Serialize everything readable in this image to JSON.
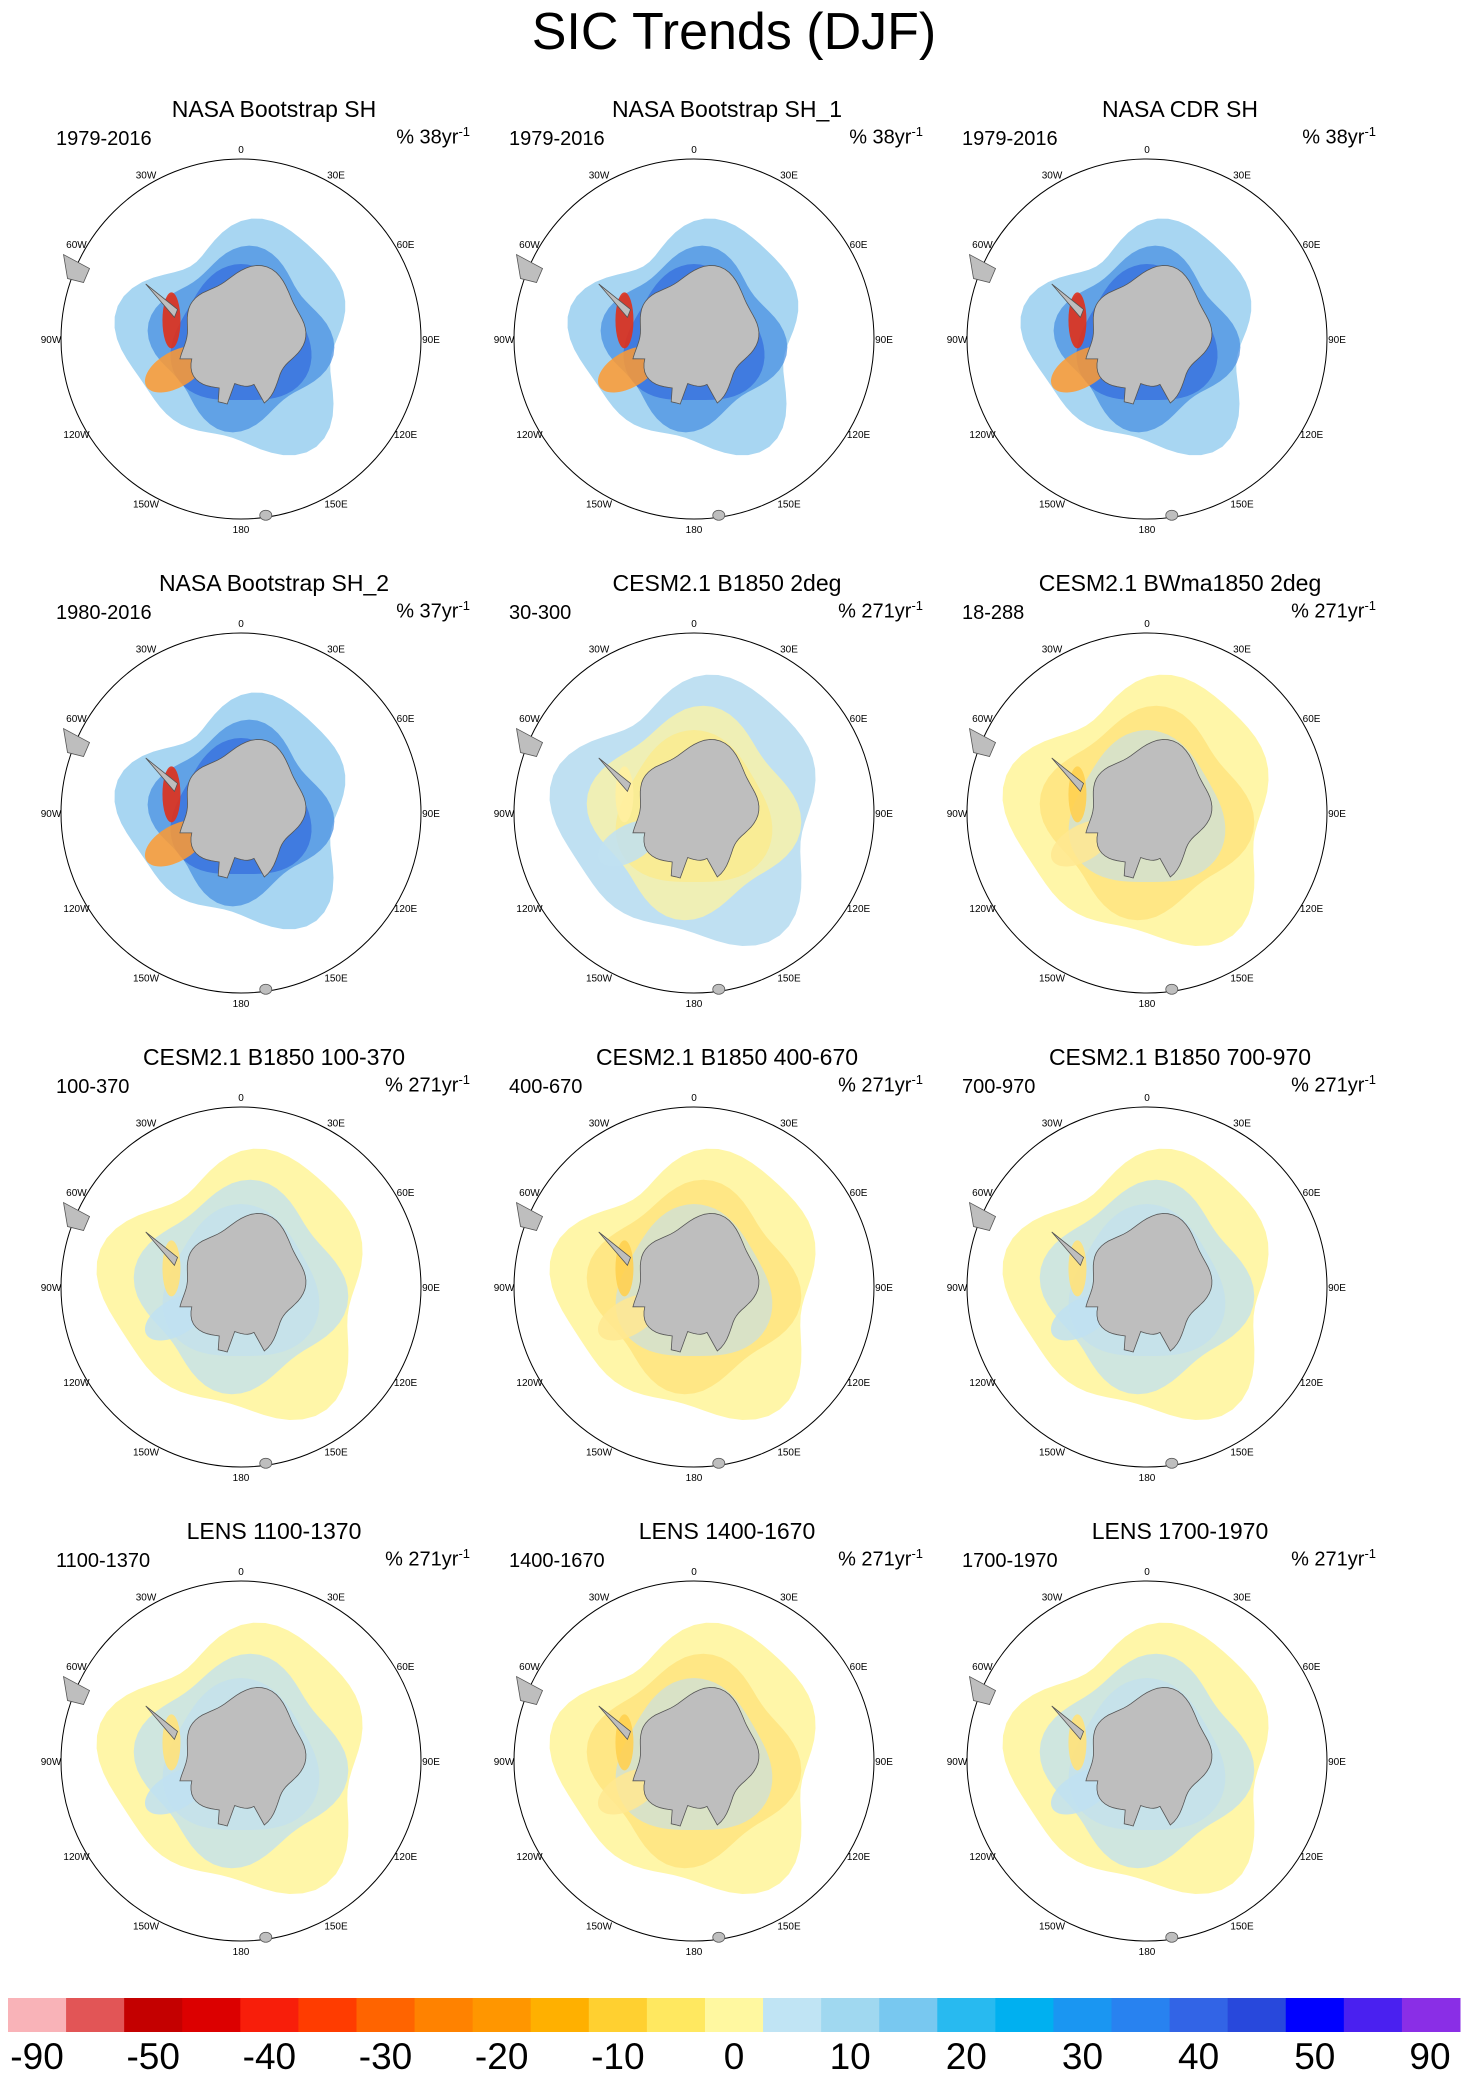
{
  "figure_title": "SIC Trends (DJF)",
  "units_prefix": "% ",
  "panels": [
    {
      "title": "NASA Bootstrap SH",
      "period": "1979-2016",
      "units_base": "38yr",
      "units_exp": "-1",
      "style": "obs"
    },
    {
      "title": "NASA Bootstrap SH_1",
      "period": "1979-2016",
      "units_base": "38yr",
      "units_exp": "-1",
      "style": "obs"
    },
    {
      "title": "NASA CDR SH",
      "period": "1979-2016",
      "units_base": "38yr",
      "units_exp": "-1",
      "style": "obs"
    },
    {
      "title": "NASA Bootstrap SH_2",
      "period": "1980-2016",
      "units_base": "37yr",
      "units_exp": "-1",
      "style": "obs"
    },
    {
      "title": "CESM2.1 B1850 2deg",
      "period": "30-300",
      "units_base": "271yr",
      "units_exp": "-1",
      "style": "model_blue"
    },
    {
      "title": "CESM2.1 BWma1850 2deg",
      "period": "18-288",
      "units_base": "271yr",
      "units_exp": "-1",
      "style": "model_yellow"
    },
    {
      "title": "CESM2.1 B1850 100-370",
      "period": "100-370",
      "units_base": "271yr",
      "units_exp": "-1",
      "style": "model_mixed"
    },
    {
      "title": "CESM2.1 B1850 400-670",
      "period": "400-670",
      "units_base": "271yr",
      "units_exp": "-1",
      "style": "model_yellow"
    },
    {
      "title": "CESM2.1 B1850 700-970",
      "period": "700-970",
      "units_base": "271yr",
      "units_exp": "-1",
      "style": "model_mixed"
    },
    {
      "title": "LENS 1100-1370",
      "period": "1100-1370",
      "units_base": "271yr",
      "units_exp": "-1",
      "style": "model_mixed"
    },
    {
      "title": "LENS 1400-1670",
      "period": "1400-1670",
      "units_base": "271yr",
      "units_exp": "-1",
      "style": "model_yellow"
    },
    {
      "title": "LENS 1700-1970",
      "period": "1700-1970",
      "units_base": "271yr",
      "units_exp": "-1",
      "style": "model_mixed"
    }
  ],
  "longitude_labels": [
    {
      "label": "0",
      "lon": 0
    },
    {
      "label": "30E",
      "lon": 30
    },
    {
      "label": "60E",
      "lon": 60
    },
    {
      "label": "90E",
      "lon": 90
    },
    {
      "label": "120E",
      "lon": 120
    },
    {
      "label": "150E",
      "lon": 150
    },
    {
      "label": "180",
      "lon": 180
    },
    {
      "label": "150W",
      "lon": -150
    },
    {
      "label": "120W",
      "lon": -120
    },
    {
      "label": "90W",
      "lon": -90
    },
    {
      "label": "60W",
      "lon": -60
    },
    {
      "label": "30W",
      "lon": -30
    }
  ],
  "colors": {
    "land": "#bebebe",
    "coast": "#555555",
    "circle": "#000000"
  },
  "colorbar": {
    "colors": [
      "#f9b3b8",
      "#e25556",
      "#c40000",
      "#dc0000",
      "#f81e0a",
      "#ff3c00",
      "#ff6400",
      "#ff8200",
      "#ff9600",
      "#ffb000",
      "#ffd030",
      "#ffe860",
      "#fff8a0",
      "#c0e4f4",
      "#a0d8f0",
      "#78c8f0",
      "#28baf0",
      "#00b0f0",
      "#1a96f2",
      "#2882f0",
      "#3264e6",
      "#2848dc",
      "#0000ff",
      "#4a20f0",
      "#8a2ee6"
    ],
    "labels": [
      {
        "text": "-90",
        "boundary": 1
      },
      {
        "text": "-50",
        "boundary": 3
      },
      {
        "text": "-40",
        "boundary": 5
      },
      {
        "text": "-30",
        "boundary": 7
      },
      {
        "text": "-20",
        "boundary": 9
      },
      {
        "text": "-10",
        "boundary": 11
      },
      {
        "text": "0",
        "boundary": 13
      },
      {
        "text": "10",
        "boundary": 15
      },
      {
        "text": "20",
        "boundary": 17
      },
      {
        "text": "30",
        "boundary": 19
      },
      {
        "text": "40",
        "boundary": 21
      },
      {
        "text": "50",
        "boundary": 23
      },
      {
        "text": "90",
        "boundary": 25
      }
    ]
  },
  "chart_data": {
    "type": "heatmap",
    "title": "SIC Trends (DJF)",
    "projection": "south polar stereographic",
    "variable": "sea ice concentration trend",
    "season": "DJF",
    "units": "%",
    "colorbar_ticks": [
      -90,
      -50,
      -40,
      -30,
      -20,
      -10,
      0,
      10,
      20,
      30,
      40,
      50,
      90
    ],
    "panels": [
      {
        "name": "NASA Bootstrap SH",
        "period": "1979-2016",
        "units": "% 38yr-1"
      },
      {
        "name": "NASA Bootstrap SH_1",
        "period": "1979-2016",
        "units": "% 38yr-1"
      },
      {
        "name": "NASA CDR SH",
        "period": "1979-2016",
        "units": "% 38yr-1"
      },
      {
        "name": "NASA Bootstrap SH_2",
        "period": "1980-2016",
        "units": "% 37yr-1"
      },
      {
        "name": "CESM2.1 B1850 2deg",
        "period": "30-300",
        "units": "% 271yr-1"
      },
      {
        "name": "CESM2.1 BWma1850 2deg",
        "period": "18-288",
        "units": "% 271yr-1"
      },
      {
        "name": "CESM2.1 B1850 100-370",
        "period": "100-370",
        "units": "% 271yr-1"
      },
      {
        "name": "CESM2.1 B1850 400-670",
        "period": "400-670",
        "units": "% 271yr-1"
      },
      {
        "name": "CESM2.1 B1850 700-970",
        "period": "700-970",
        "units": "% 271yr-1"
      },
      {
        "name": "LENS 1100-1370",
        "period": "1100-1370",
        "units": "% 271yr-1"
      },
      {
        "name": "LENS 1400-1670",
        "period": "1400-1670",
        "units": "% 271yr-1"
      },
      {
        "name": "LENS 1700-1970",
        "period": "1700-1970",
        "units": "% 271yr-1"
      }
    ]
  }
}
